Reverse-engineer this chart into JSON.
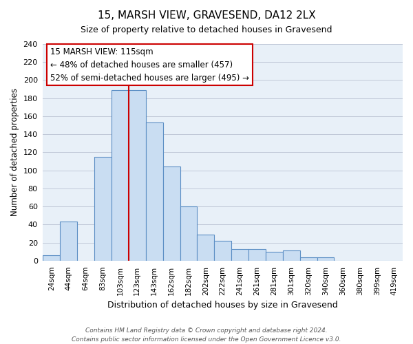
{
  "title": "15, MARSH VIEW, GRAVESEND, DA12 2LX",
  "subtitle": "Size of property relative to detached houses in Gravesend",
  "xlabel": "Distribution of detached houses by size in Gravesend",
  "ylabel": "Number of detached properties",
  "bin_labels": [
    "24sqm",
    "44sqm",
    "64sqm",
    "83sqm",
    "103sqm",
    "123sqm",
    "143sqm",
    "162sqm",
    "182sqm",
    "202sqm",
    "222sqm",
    "241sqm",
    "261sqm",
    "281sqm",
    "301sqm",
    "320sqm",
    "340sqm",
    "360sqm",
    "380sqm",
    "399sqm",
    "419sqm"
  ],
  "bar_heights": [
    6,
    43,
    0,
    115,
    189,
    189,
    153,
    104,
    60,
    29,
    22,
    13,
    13,
    10,
    11,
    4,
    4,
    0,
    0,
    0,
    0
  ],
  "bar_color": "#c9ddf2",
  "bar_edge_color": "#5b8ec4",
  "vline_color": "#cc0000",
  "annotation_title": "15 MARSH VIEW: 115sqm",
  "annotation_line1": "← 48% of detached houses are smaller (457)",
  "annotation_line2": "52% of semi-detached houses are larger (495) →",
  "annotation_box_color": "#ffffff",
  "annotation_box_edge": "#cc0000",
  "ylim": [
    0,
    240
  ],
  "yticks": [
    0,
    20,
    40,
    60,
    80,
    100,
    120,
    140,
    160,
    180,
    200,
    220,
    240
  ],
  "footnote1": "Contains HM Land Registry data © Crown copyright and database right 2024.",
  "footnote2": "Contains public sector information licensed under the Open Government Licence v3.0.",
  "background_color": "#ffffff",
  "plot_bg_color": "#e8f0f8",
  "grid_color": "#c0c8d8"
}
